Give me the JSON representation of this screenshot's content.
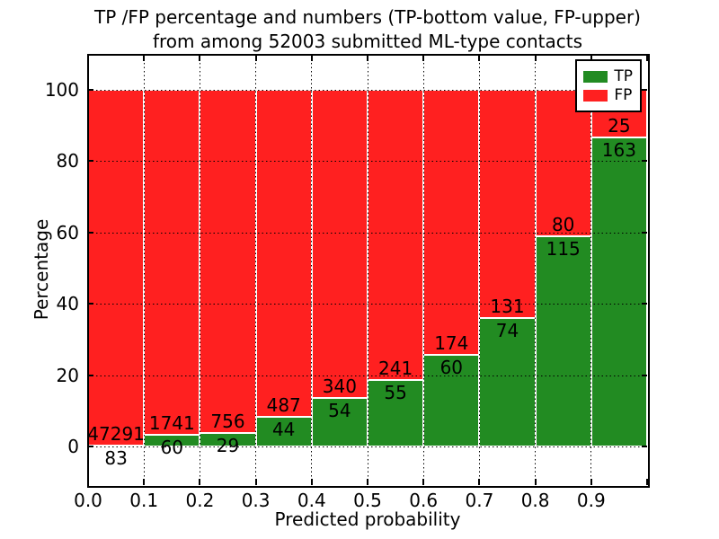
{
  "chart_data": {
    "type": "bar",
    "stacked": true,
    "normalized_to": 100,
    "title_line1": "TP /FP percentage and numbers (TP-bottom value, FP-upper)",
    "title_line2": "from among 52003 submitted ML-type contacts",
    "xlabel": "Predicted probability",
    "ylabel": "Percentage",
    "total_contacts": 52003,
    "categories": [
      "0.0-0.1",
      "0.1-0.2",
      "0.2-0.3",
      "0.3-0.4",
      "0.4-0.5",
      "0.5-0.6",
      "0.6-0.7",
      "0.7-0.8",
      "0.8-0.9",
      "0.9-1.0"
    ],
    "series": [
      {
        "name": "TP",
        "color": "#228b22",
        "values": [
          83,
          60,
          29,
          44,
          54,
          55,
          60,
          74,
          115,
          163
        ]
      },
      {
        "name": "FP",
        "color": "#ff2020",
        "values": [
          47291,
          1741,
          756,
          487,
          340,
          241,
          174,
          131,
          80,
          25
        ]
      }
    ],
    "bar_annotation_note": "each bin labeled with FP count above the TP/FP boundary and TP count below it",
    "x_tick_labels": [
      "0.0",
      "0.1",
      "0.2",
      "0.3",
      "0.4",
      "0.5",
      "0.6",
      "0.7",
      "0.8",
      "0.9"
    ],
    "y_tick_values": [
      0,
      20,
      40,
      60,
      80,
      100
    ],
    "xlim": [
      0.0,
      1.0
    ],
    "ylim": [
      -10.8,
      109.8
    ],
    "grid": "dotted black, horizontal every 20, vertical every 0.1, drawn over bars",
    "legend": {
      "position": "upper right",
      "entries": [
        {
          "label": "TP",
          "color": "#228b22"
        },
        {
          "label": "FP",
          "color": "#ff2020"
        }
      ]
    }
  },
  "colors": {
    "tp_green": "#228b22",
    "fp_red": "#ff2020",
    "background": "#ffffff",
    "text": "#000000",
    "bar_edge": "#ffffff"
  }
}
